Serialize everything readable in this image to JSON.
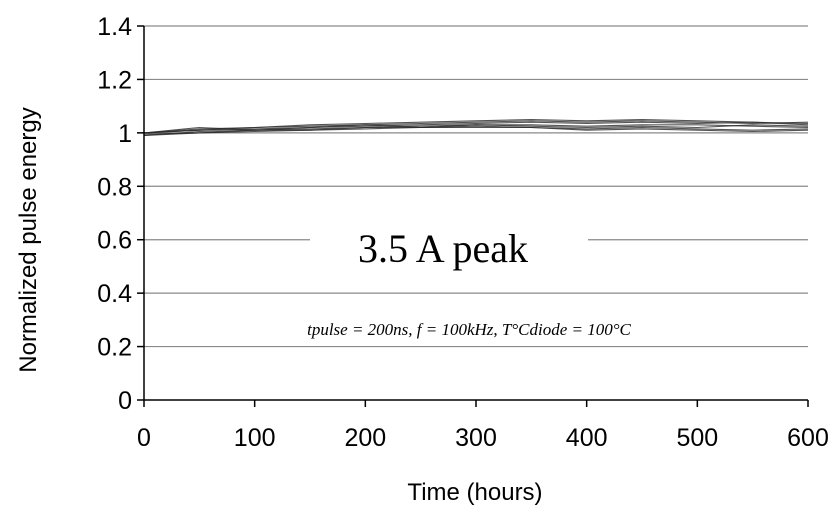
{
  "chart_data": {
    "type": "line",
    "title": "",
    "xlabel": "Time (hours)",
    "ylabel": "Normalized pulse energy",
    "xlim": [
      0,
      600
    ],
    "ylim": [
      0,
      1.4
    ],
    "x_ticks": [
      "0",
      "100",
      "200",
      "300",
      "400",
      "500",
      "600"
    ],
    "y_ticks": [
      "0",
      "0.2",
      "0.4",
      "0.6",
      "0.8",
      "1",
      "1.2",
      "1.4"
    ],
    "grid": "horizontal",
    "legend": "none",
    "annotations": {
      "main": "3.5 A peak",
      "conditions": "tpulse = 200ns, f = 100kHz, T°Cdiode = 100°C"
    },
    "series": [
      {
        "x": [
          0,
          50,
          100,
          150,
          200,
          250,
          300,
          350,
          400,
          450,
          500,
          550,
          600
        ],
        "y": [
          1.0,
          1.01,
          1.015,
          1.02,
          1.025,
          1.03,
          1.035,
          1.04,
          1.035,
          1.04,
          1.035,
          1.04,
          1.03
        ]
      },
      {
        "x": [
          0,
          50,
          100,
          150,
          200,
          250,
          300,
          350,
          400,
          450,
          500,
          550,
          600
        ],
        "y": [
          0.99,
          1.005,
          1.01,
          1.015,
          1.02,
          1.025,
          1.03,
          1.03,
          1.025,
          1.03,
          1.03,
          1.025,
          1.02
        ]
      },
      {
        "x": [
          0,
          50,
          100,
          150,
          200,
          250,
          300,
          350,
          400,
          450,
          500,
          550,
          600
        ],
        "y": [
          1.0,
          1.02,
          1.01,
          1.02,
          1.03,
          1.02,
          1.03,
          1.025,
          1.02,
          1.025,
          1.02,
          1.03,
          1.025
        ]
      },
      {
        "x": [
          0,
          50,
          100,
          150,
          200,
          250,
          300,
          350,
          400,
          450,
          500,
          550,
          600
        ],
        "y": [
          0.995,
          1.0,
          1.005,
          1.01,
          1.015,
          1.02,
          1.02,
          1.02,
          1.015,
          1.02,
          1.015,
          1.01,
          1.015
        ]
      },
      {
        "x": [
          0,
          50,
          100,
          150,
          200,
          250,
          300,
          350,
          400,
          450,
          500,
          550,
          600
        ],
        "y": [
          1.0,
          1.01,
          1.02,
          1.025,
          1.03,
          1.035,
          1.04,
          1.045,
          1.04,
          1.045,
          1.04,
          1.035,
          1.04
        ]
      },
      {
        "x": [
          0,
          50,
          100,
          150,
          200,
          250,
          300,
          350,
          400,
          450,
          500,
          550,
          600
        ],
        "y": [
          0.99,
          1.0,
          1.01,
          1.01,
          1.02,
          1.02,
          1.025,
          1.02,
          1.01,
          1.015,
          1.01,
          1.005,
          1.01
        ]
      },
      {
        "x": [
          0,
          50,
          100,
          150,
          200,
          250,
          300,
          350,
          400,
          450,
          500,
          550,
          600
        ],
        "y": [
          1.0,
          1.015,
          1.02,
          1.03,
          1.035,
          1.04,
          1.045,
          1.05,
          1.045,
          1.05,
          1.045,
          1.04,
          1.035
        ]
      }
    ]
  }
}
